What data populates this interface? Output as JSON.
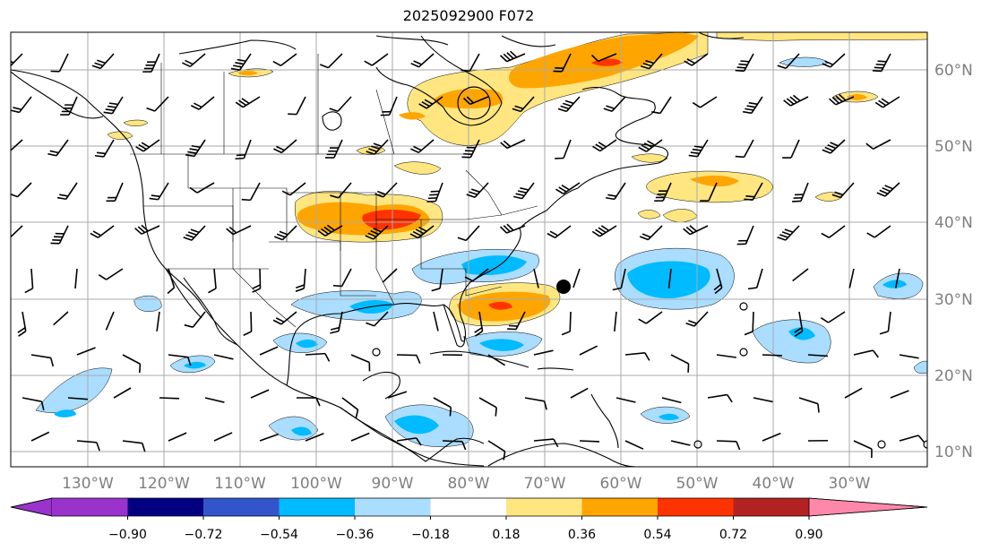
{
  "title": "2025092900 F072",
  "lon_labels": [
    "130°W",
    "120°W",
    "110°W",
    "100°W",
    "90°W",
    "80°W",
    "70°W",
    "60°W",
    "50°W",
    "40°W",
    "30°W"
  ],
  "lat_labels": [
    "60°N",
    "50°N",
    "40°N",
    "30°N",
    "20°N",
    "10°N"
  ],
  "colorbar": {
    "ticks": [
      "−0.90",
      "−0.72",
      "−0.54",
      "−0.36",
      "−0.18",
      "0.18",
      "0.36",
      "0.54",
      "0.72",
      "0.90"
    ],
    "colors": [
      "#9933cc",
      "#000080",
      "#3355cc",
      "#00bbff",
      "#aaddff",
      "#ffffff",
      "#ffe680",
      "#ffa500",
      "#ff3300",
      "#b22222",
      "#ff88aa"
    ]
  },
  "colors": {
    "light_blue": "#aaddff",
    "blue": "#00bbff",
    "yellow": "#ffe680",
    "orange": "#ffa500",
    "red": "#ff3300",
    "axis_label": "#7f7f7f"
  }
}
